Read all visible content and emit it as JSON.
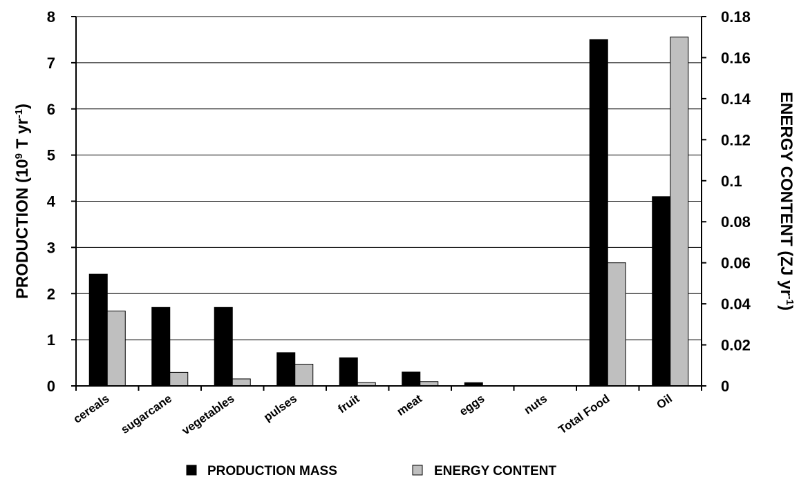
{
  "chart_data": {
    "type": "bar",
    "categories": [
      "cereals",
      "sugarcane",
      "vegetables",
      "pulses",
      "fruit",
      "meat",
      "eggs",
      "nuts",
      "Total Food",
      "Oil"
    ],
    "series": [
      {
        "name": "PRODUCTION MASS",
        "axis": "left",
        "color": "#000000",
        "values": [
          2.42,
          1.7,
          1.7,
          0.72,
          0.61,
          0.3,
          0.07,
          0,
          7.5,
          4.1
        ]
      },
      {
        "name": "ENERGY CONTENT",
        "axis": "right",
        "color": "#bfbfbf",
        "values": [
          0.0365,
          0.0066,
          0.0034,
          0.0106,
          0.0016,
          0.0021,
          0,
          0,
          0.06,
          0.17
        ]
      }
    ],
    "y_left": {
      "label_main": "PRODUCTION (10",
      "label_exp": "9",
      "label_mid": " T yr",
      "label_exp2": "-1",
      "label_end": ")",
      "ylim": [
        0,
        8
      ],
      "ticks": [
        "0",
        "1",
        "2",
        "3",
        "4",
        "5",
        "6",
        "7",
        "8"
      ]
    },
    "y_right": {
      "label_main": "ENERGY CONTENT (ZJ  yr",
      "label_exp": "-1",
      "label_end": ")",
      "ylim": [
        0,
        0.18
      ],
      "ticks": [
        "0",
        "0.02",
        "0.04",
        "0.06",
        "0.08",
        "0.1",
        "0.12",
        "0.14",
        "0.16",
        "0.18"
      ]
    },
    "grid": true,
    "legend_position": "bottom"
  }
}
